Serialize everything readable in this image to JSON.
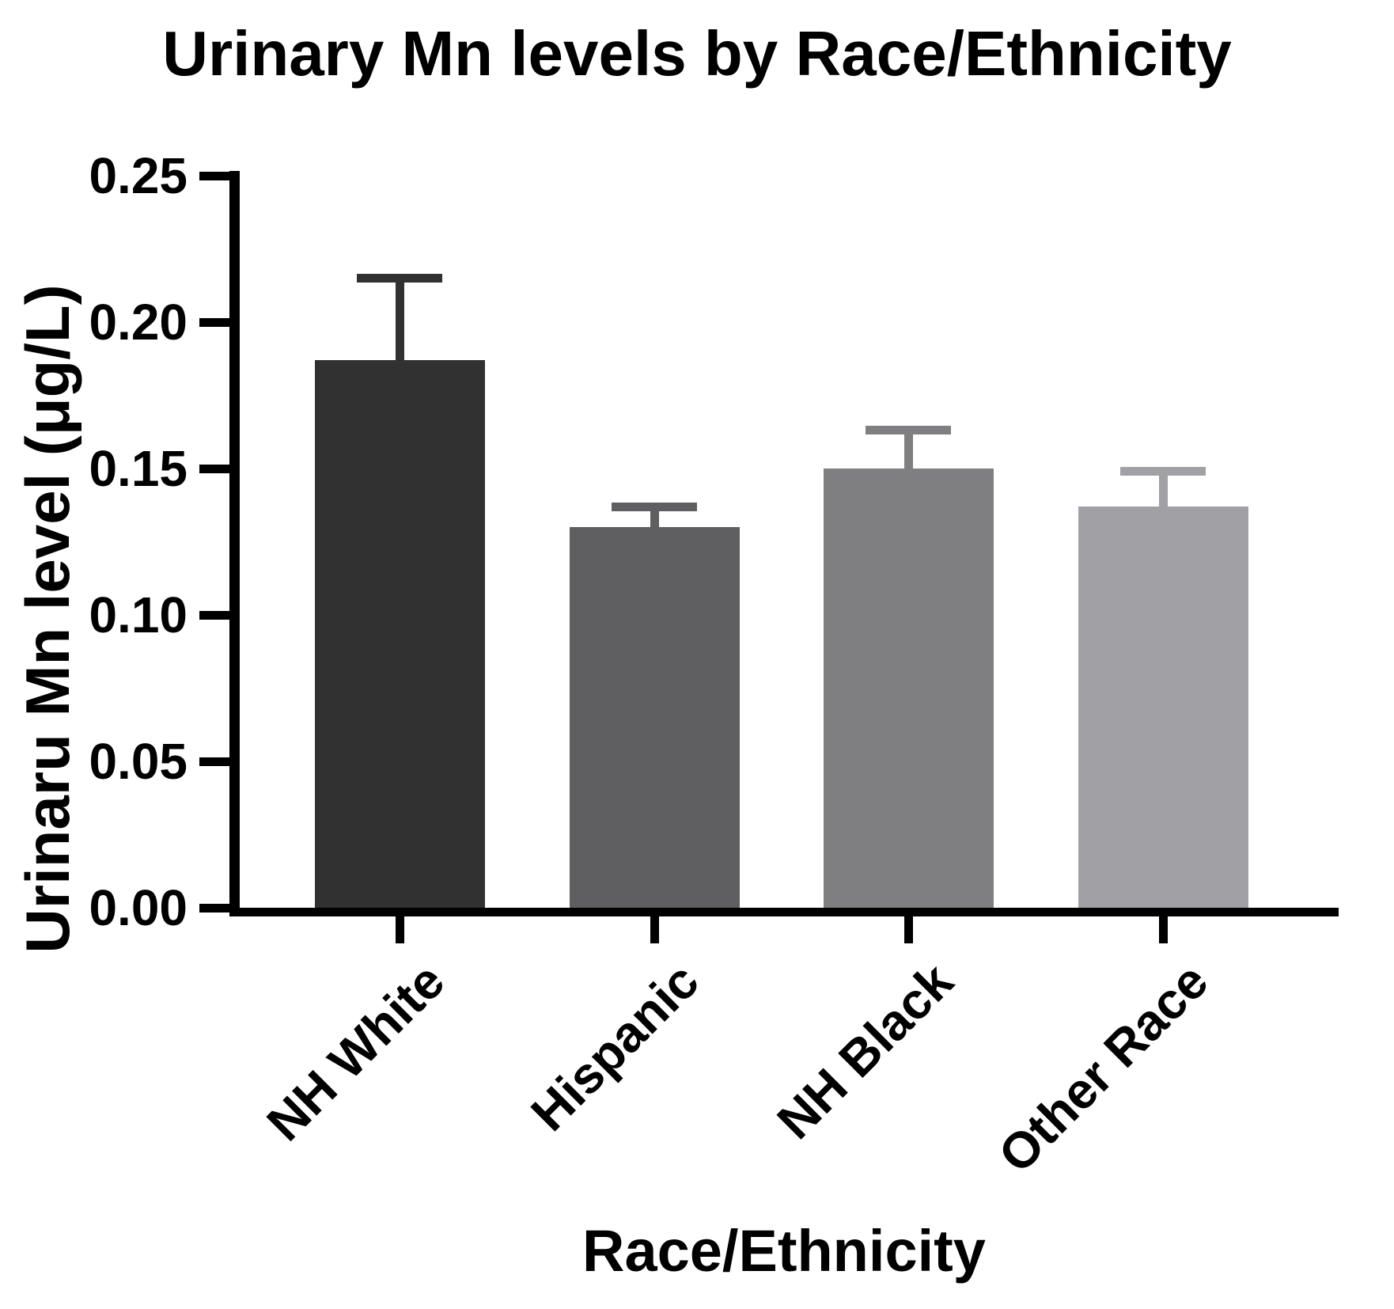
{
  "figure": {
    "title": "Urinary Mn levels by Race/Ethnicity",
    "ylabel": "Urinaru Mn level (μg/L)",
    "xlabel": "Race/Ethnicity"
  },
  "chart_data": {
    "type": "bar",
    "title": "Urinary Mn levels by Race/Ethnicity",
    "xlabel": "Race/Ethnicity",
    "ylabel": "Urinaru Mn level (μg/L)",
    "categories": [
      "NH White",
      "Hispanic",
      "NH Black",
      "Other Race"
    ],
    "values": [
      0.187,
      0.13,
      0.15,
      0.137
    ],
    "errors_plus": [
      0.028,
      0.007,
      0.013,
      0.012
    ],
    "error_bar_style": "upper-only-with-cap",
    "bar_colors": [
      "#323132",
      "#5f5e60",
      "#7f7e80",
      "#a1a0a5"
    ],
    "axis_color": "#000000",
    "background_color": "#ffffff",
    "ylim": [
      0,
      0.25
    ],
    "ytick_values": [
      0,
      0.05,
      0.1,
      0.15,
      0.2,
      0.25
    ],
    "ytick_labels": [
      "0.00",
      "0.05",
      "0.10",
      "0.15",
      "0.20",
      "0.25"
    ],
    "xtick_rotation_deg": 45,
    "grid": false,
    "legend": "none"
  }
}
